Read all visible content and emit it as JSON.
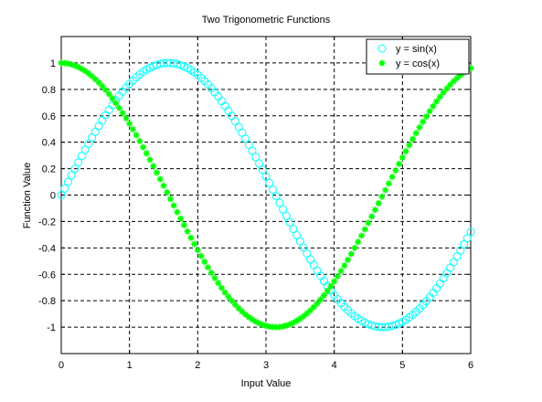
{
  "chart_data": {
    "type": "line",
    "title": "Two Trigonometric Functions",
    "xlabel": "Input Value",
    "ylabel": "Function Value",
    "xlim": [
      0,
      6
    ],
    "ylim": [
      -1.2,
      1.2
    ],
    "xticks": [
      "0",
      "1",
      "2",
      "3",
      "4",
      "5",
      "6"
    ],
    "yticks": [
      "-1",
      "-0.8",
      "-0.6",
      "-0.4",
      "-0.2",
      "0",
      "0.2",
      "0.4",
      "0.6",
      "0.8",
      "1"
    ],
    "grid": true,
    "grid_style": "dashed",
    "legend_position": "top-right",
    "x_sampling": {
      "start": 0,
      "step": 0.05,
      "end": 6
    },
    "series": [
      {
        "name": "y = sin(x)",
        "function": "sin(x)",
        "marker": "o",
        "color": "#00ffff",
        "x": [
          0,
          0.5,
          1,
          1.5,
          2,
          2.5,
          3,
          3.5,
          4,
          4.5,
          5,
          5.5,
          6
        ],
        "y": [
          0,
          0.479,
          0.841,
          0.997,
          0.909,
          0.598,
          0.141,
          -0.351,
          -0.757,
          -0.978,
          -0.959,
          -0.706,
          -0.279
        ]
      },
      {
        "name": "y = cos(x)",
        "function": "cos(x)",
        "marker": "*",
        "color": "#00ff00",
        "x": [
          0,
          0.5,
          1,
          1.5,
          2,
          2.5,
          3,
          3.5,
          4,
          4.5,
          5,
          5.5,
          6
        ],
        "y": [
          1,
          0.878,
          0.54,
          0.071,
          -0.416,
          -0.801,
          -0.99,
          -0.936,
          -0.654,
          -0.211,
          0.284,
          0.709,
          0.96
        ]
      }
    ]
  }
}
